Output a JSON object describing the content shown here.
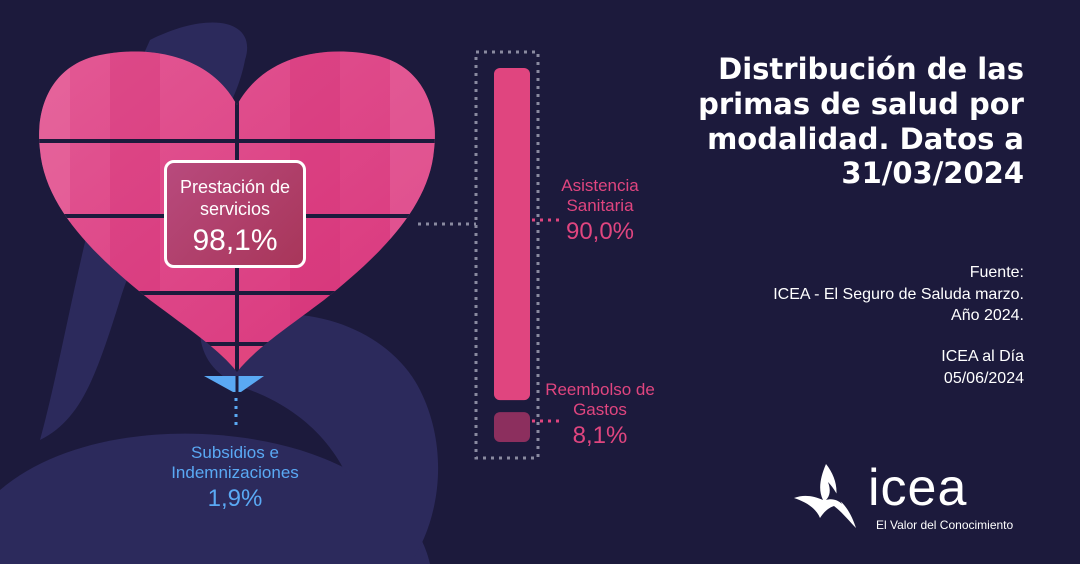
{
  "title": "Distribución de las primas de salud por modalidad. Datos a 31/03/2024",
  "source": {
    "line1": "Fuente:",
    "line2": "ICEA - El Seguro de Saluda marzo.",
    "line3": "Año 2024."
  },
  "citation": {
    "line1": "ICEA al Día",
    "line2": "05/06/2024"
  },
  "brand": {
    "name": "icea",
    "tagline": "El Valor del Conocimiento"
  },
  "colors": {
    "background": "#1c1a3c",
    "heart": "#e0457f",
    "subsidios": "#5aa9f4",
    "reembolso": "#8c2f5e",
    "box_border": "#ffffff"
  },
  "chart_data": {
    "type": "bar",
    "categories": [
      "Prestación de servicios",
      "Subsidios e Indemnizaciones"
    ],
    "values": [
      98.1,
      1.9
    ],
    "breakdown": {
      "parent": "Prestación de servicios",
      "categories": [
        "Asistencia Sanitaria",
        "Reembolso de Gastos"
      ],
      "values": [
        90.0,
        8.1
      ]
    }
  },
  "labels": {
    "prestacion": {
      "name": "Prestación de servicios",
      "value": "98,1%"
    },
    "asistencia": {
      "name": "Asistencia Sanitaria",
      "value": "90,0%"
    },
    "reembolso": {
      "name": "Reembolso de Gastos",
      "value": "8,1%"
    },
    "subsidios": {
      "name": "Subsidios e Indemnizaciones",
      "value": "1,9%"
    }
  }
}
